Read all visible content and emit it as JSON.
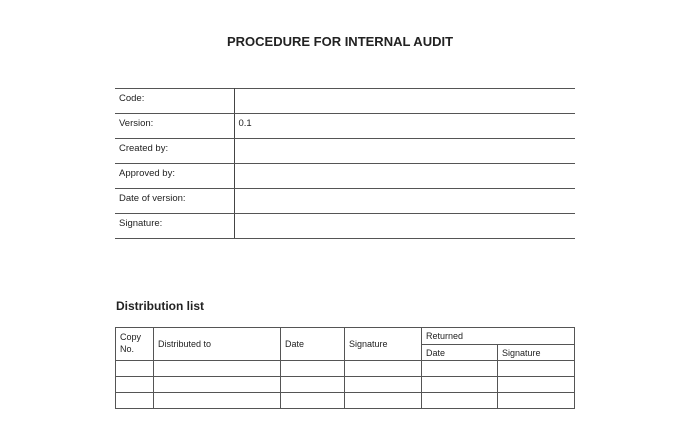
{
  "title": "PROCEDURE FOR INTERNAL AUDIT",
  "info_rows": [
    {
      "label": "Code:",
      "value": ""
    },
    {
      "label": "Version:",
      "value": "0.1"
    },
    {
      "label": "Created by:",
      "value": ""
    },
    {
      "label": "Approved by:",
      "value": ""
    },
    {
      "label": "Date of version:",
      "value": ""
    },
    {
      "label": "Signature:",
      "value": ""
    }
  ],
  "distribution": {
    "heading": "Distribution list",
    "headers": {
      "copy_no": "Copy No.",
      "distributed_to": "Distributed to",
      "date": "Date",
      "signature": "Signature",
      "returned": "Returned",
      "returned_date": "Date",
      "returned_signature": "Signature"
    }
  }
}
